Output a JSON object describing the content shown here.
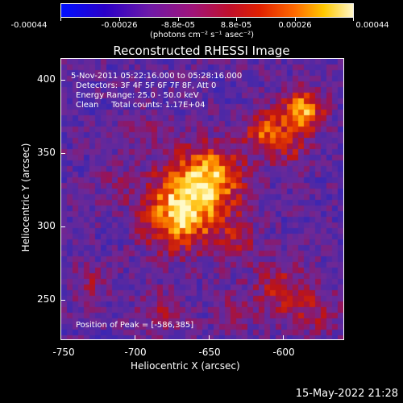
{
  "colorbar": {
    "ticks": [
      "-0.00044",
      "-0.00026",
      "-8.8e-05",
      "8.8e-05",
      "0.00026",
      "0.00044"
    ],
    "units": "(photons cm⁻² s⁻¹ asec⁻²)"
  },
  "title": "Reconstructed RHESSI Image",
  "annotations": {
    "time_range": "5-Nov-2011 05:22:16.000 to 05:28:16.000",
    "detectors": "Detectors: 3F 4F 5F 6F 7F 8F, Att 0",
    "energy": "Energy Range: 25.0 - 50.0 keV",
    "clean": "Clean     Total counts: 1.17E+04",
    "peak": "Position of Peak = [-586,385]"
  },
  "axes": {
    "xlabel": "Heliocentric X (arcsec)",
    "ylabel": "Heliocentric Y (arcsec)",
    "xticks": [
      "-750",
      "-700",
      "-650",
      "-600"
    ],
    "yticks": [
      "400",
      "350",
      "300",
      "250"
    ]
  },
  "footer": {
    "date": "15-May-2022 21:28"
  },
  "colors": {
    "background": "#000000",
    "axis": "#ffffff"
  }
}
